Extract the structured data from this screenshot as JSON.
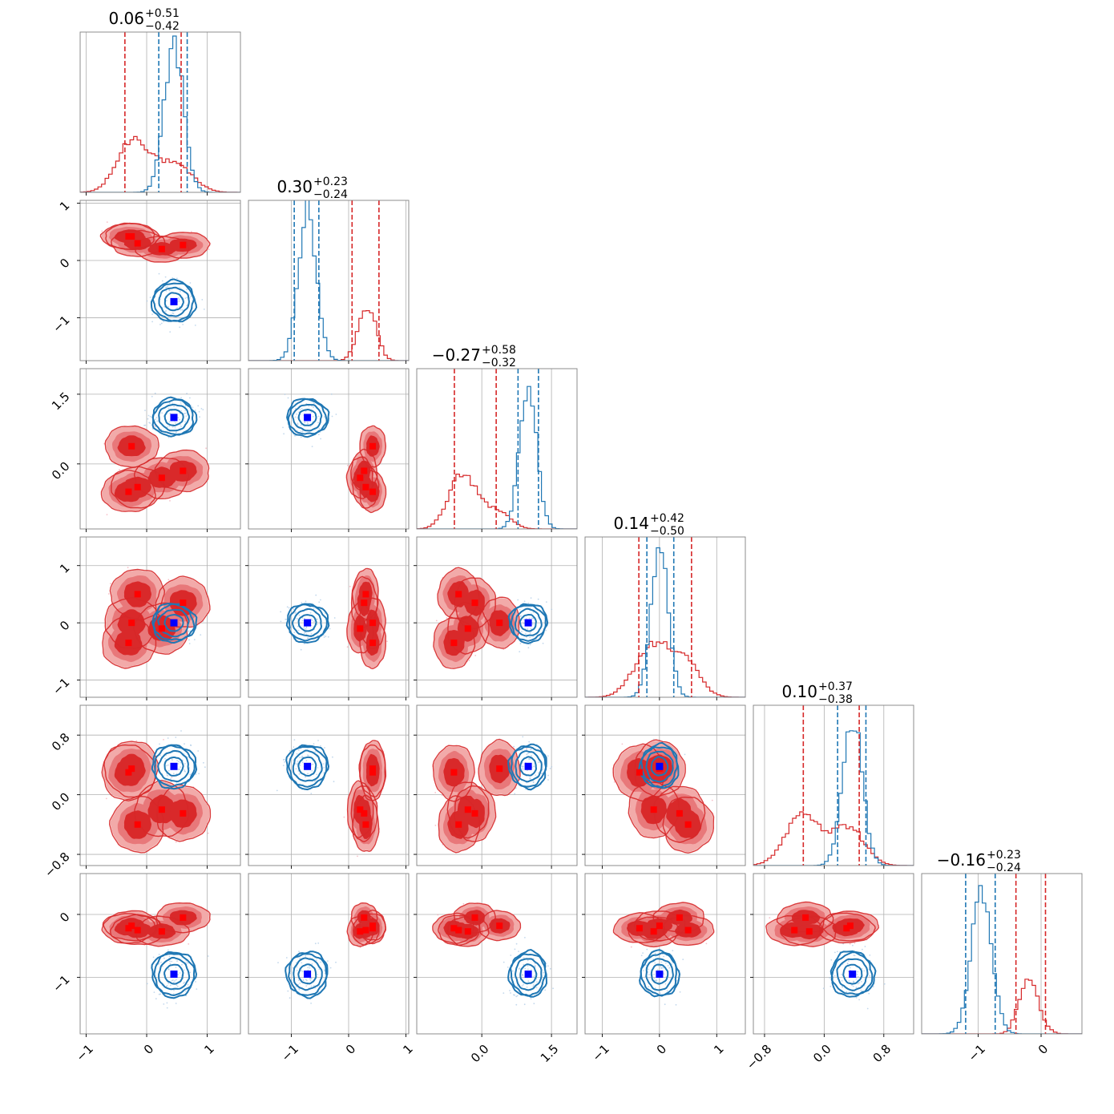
{
  "chart_data": {
    "type": "corner",
    "n_params": 6,
    "colors": {
      "red": "#d62728",
      "red_fill_outer": "#f2aaa9",
      "red_fill_inner": "#d9292a",
      "blue": "#1f77b4",
      "truth_blue": "#0000ff",
      "truth_red": "#ff0000",
      "grid": "#b0b0b0"
    },
    "titles": [
      {
        "main": "0.06",
        "plus": "+0.51",
        "minus": "−0.42"
      },
      {
        "main": "0.30",
        "plus": "+0.23",
        "minus": "−0.24"
      },
      {
        "main": "−0.27",
        "plus": "+0.58",
        "minus": "−0.32"
      },
      {
        "main": "0.14",
        "plus": "+0.42",
        "minus": "−0.50"
      },
      {
        "main": "0.10",
        "plus": "+0.37",
        "minus": "−0.38"
      },
      {
        "main": "−0.16",
        "plus": "+0.23",
        "minus": "−0.24"
      }
    ],
    "params": [
      {
        "range": [
          -1.1,
          1.55
        ],
        "ticks": [
          -1,
          0,
          1
        ],
        "tick_labels": [
          "−1",
          "0",
          "1"
        ]
      },
      {
        "range": [
          -1.75,
          1.05
        ],
        "ticks": [
          -1,
          0,
          1
        ],
        "tick_labels": [
          "−1",
          "0",
          "1"
        ]
      },
      {
        "range": [
          -1.4,
          2.05
        ],
        "ticks": [
          0.0,
          1.5
        ],
        "tick_labels": [
          "0.0",
          "1.5"
        ]
      },
      {
        "range": [
          -1.3,
          1.5
        ],
        "ticks": [
          -1,
          0,
          1
        ],
        "tick_labels": [
          "−1",
          "0",
          "1"
        ]
      },
      {
        "range": [
          -0.95,
          1.2
        ],
        "ticks": [
          -0.8,
          0.0,
          0.8
        ],
        "tick_labels": [
          "−0.8",
          "0.0",
          "0.8"
        ]
      },
      {
        "range": [
          -1.9,
          0.65
        ],
        "ticks": [
          -1,
          0
        ],
        "tick_labels": [
          "−1",
          "0"
        ]
      }
    ],
    "red_truths": [
      [
        -0.25,
        0.42,
        0.38,
        0.0,
        0.35,
        -0.18
      ],
      [
        -0.15,
        0.3,
        -0.5,
        0.5,
        -0.4,
        -0.25
      ],
      [
        0.25,
        0.2,
        -0.3,
        -0.1,
        -0.2,
        -0.27
      ],
      [
        0.6,
        0.27,
        -0.15,
        0.35,
        -0.25,
        -0.05
      ],
      [
        -0.3,
        0.42,
        -0.6,
        -0.35,
        0.3,
        -0.22
      ]
    ],
    "blue_truth": [
      0.45,
      -0.72,
      1.0,
      0.0,
      0.38,
      -0.95
    ],
    "red_mean": [
      0.06,
      0.3,
      -0.27,
      0.14,
      0.1,
      -0.16
    ],
    "red_sd": [
      0.45,
      0.23,
      0.45,
      0.45,
      0.38,
      0.24
    ],
    "blue_mean": [
      0.45,
      -0.72,
      1.0,
      0.0,
      0.38,
      -0.95
    ],
    "blue_sd": [
      0.16,
      0.16,
      0.18,
      0.15,
      0.13,
      0.16
    ],
    "red_quantiles": [
      [
        -0.36,
        0.57
      ],
      [
        0.06,
        0.53
      ],
      [
        -0.59,
        0.31
      ],
      [
        -0.36,
        0.56
      ],
      [
        -0.28,
        0.47
      ],
      [
        -0.4,
        0.07
      ]
    ],
    "blue_quantiles": [
      [
        0.2,
        0.67
      ],
      [
        -0.95,
        -0.52
      ],
      [
        0.78,
        1.22
      ],
      [
        -0.22,
        0.25
      ],
      [
        0.18,
        0.56
      ],
      [
        -1.2,
        -0.73
      ]
    ]
  }
}
